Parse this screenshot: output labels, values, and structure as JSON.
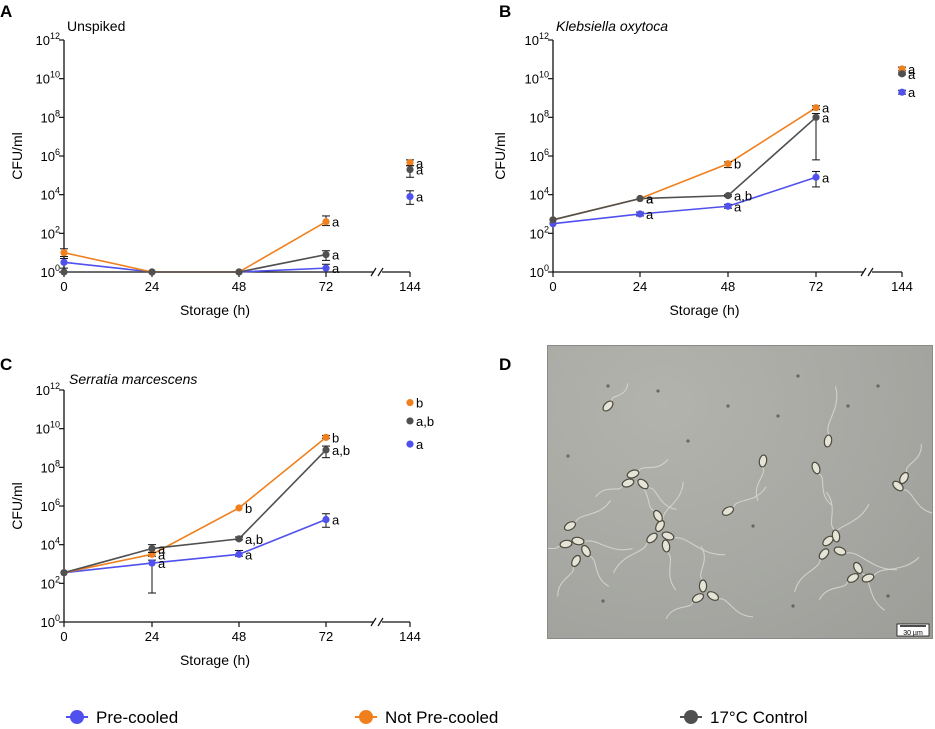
{
  "figure": {
    "legend": [
      {
        "label": "Pre-cooled",
        "color": "#5050ee"
      },
      {
        "label": "Not Pre-cooled",
        "color": "#f0801e"
      },
      {
        "label": "17°C Control",
        "color": "#505050"
      }
    ],
    "micrograph": {
      "label": "D",
      "scale_bar": "30 µm",
      "description_icon": "sperm-micrograph-image"
    }
  },
  "chart_data": [
    {
      "label": "A",
      "type": "line",
      "title": "Unspiked",
      "title_italic": false,
      "xlabel": "Storage (h)",
      "ylabel": "CFU/ml",
      "y_scale": "log10",
      "ylim": [
        0,
        12
      ],
      "yticks": [
        {
          "base": "10",
          "exp": "0"
        },
        {
          "base": "10",
          "exp": "2"
        },
        {
          "base": "10",
          "exp": "4"
        },
        {
          "base": "10",
          "exp": "6"
        },
        {
          "base": "10",
          "exp": "8"
        },
        {
          "base": "10",
          "exp": "10"
        },
        {
          "base": "10",
          "exp": "12"
        }
      ],
      "categories": [
        "0",
        "24",
        "48",
        "72",
        "144"
      ],
      "series": [
        {
          "name": "Pre-cooled",
          "color": "#5050ee",
          "points": [
            {
              "x": "0",
              "y": 0.5,
              "lo": 0.2,
              "hi": 0.7
            },
            {
              "x": "24",
              "y": 0
            },
            {
              "x": "48",
              "y": 0
            },
            {
              "x": "72",
              "y": 0.2,
              "lo": 0,
              "hi": 0.4,
              "label": "a"
            },
            {
              "x": "144",
              "y": 3.9,
              "lo": 3.5,
              "hi": 4.2,
              "label": "a",
              "separate": true
            }
          ]
        },
        {
          "name": "Not Pre-cooled",
          "color": "#f0801e",
          "points": [
            {
              "x": "0",
              "y": 1.0,
              "lo": 0.8,
              "hi": 1.2
            },
            {
              "x": "24",
              "y": 0
            },
            {
              "x": "48",
              "y": 0
            },
            {
              "x": "72",
              "y": 2.6,
              "lo": 2.4,
              "hi": 2.9,
              "label": "a"
            },
            {
              "x": "144",
              "y": 5.65,
              "lo": 5.5,
              "hi": 5.8,
              "label": "a",
              "separate": true
            }
          ]
        },
        {
          "name": "17°C Control",
          "color": "#505050",
          "points": [
            {
              "x": "0",
              "y": 0
            },
            {
              "x": "24",
              "y": 0
            },
            {
              "x": "48",
              "y": 0
            },
            {
              "x": "72",
              "y": 0.9,
              "lo": 0.6,
              "hi": 1.1,
              "label": "a"
            },
            {
              "x": "144",
              "y": 5.3,
              "lo": 4.9,
              "hi": 5.5,
              "label": "a",
              "separate": true
            }
          ]
        }
      ]
    },
    {
      "label": "B",
      "type": "line",
      "title": "Klebsiella oxytoca",
      "title_italic": true,
      "xlabel": "Storage (h)",
      "ylabel": "CFU/ml",
      "y_scale": "log10",
      "ylim": [
        0,
        12
      ],
      "yticks": [
        {
          "base": "10",
          "exp": "0"
        },
        {
          "base": "10",
          "exp": "2"
        },
        {
          "base": "10",
          "exp": "4"
        },
        {
          "base": "10",
          "exp": "6"
        },
        {
          "base": "10",
          "exp": "8"
        },
        {
          "base": "10",
          "exp": "10"
        },
        {
          "base": "10",
          "exp": "12"
        }
      ],
      "categories": [
        "0",
        "24",
        "48",
        "72",
        "144"
      ],
      "series": [
        {
          "name": "Pre-cooled",
          "color": "#5050ee",
          "points": [
            {
              "x": "0",
              "y": 2.5
            },
            {
              "x": "24",
              "y": 3.0,
              "lo": 2.9,
              "hi": 3.1,
              "label": "a"
            },
            {
              "x": "48",
              "y": 3.4,
              "lo": 3.3,
              "hi": 3.5,
              "label": "a"
            },
            {
              "x": "72",
              "y": 4.9,
              "lo": 4.4,
              "hi": 5.2,
              "label": "a"
            },
            {
              "x": "144",
              "y": 9.3,
              "lo": 9.2,
              "hi": 9.4,
              "label": "a",
              "separate": true
            }
          ]
        },
        {
          "name": "Not Pre-cooled",
          "color": "#f0801e",
          "points": [
            {
              "x": "0",
              "y": 2.7
            },
            {
              "x": "24",
              "y": 3.8,
              "label": "a"
            },
            {
              "x": "48",
              "y": 5.6,
              "lo": 5.4,
              "hi": 5.7,
              "label": "b"
            },
            {
              "x": "72",
              "y": 8.5,
              "lo": 8.4,
              "hi": 8.6,
              "label": "a"
            },
            {
              "x": "144",
              "y": 10.5,
              "lo": 10.4,
              "hi": 10.6,
              "label": "a",
              "separate": true
            }
          ]
        },
        {
          "name": "17°C Control",
          "color": "#505050",
          "points": [
            {
              "x": "0",
              "y": 2.7
            },
            {
              "x": "24",
              "y": 3.8,
              "label": "a"
            },
            {
              "x": "48",
              "y": 3.95,
              "lo": 3.9,
              "hi": 4.0,
              "label": "a,b"
            },
            {
              "x": "72",
              "y": 8.0,
              "lo": 5.8,
              "hi": 8.2,
              "label": "a"
            },
            {
              "x": "144",
              "y": 10.25,
              "lo": 10.2,
              "hi": 10.3,
              "label": "a",
              "separate": true
            }
          ]
        }
      ]
    },
    {
      "label": "C",
      "type": "line",
      "title": "Serratia marcescens",
      "title_italic": true,
      "xlabel": "Storage (h)",
      "ylabel": "CFU/ml",
      "y_scale": "log10",
      "ylim": [
        0,
        12
      ],
      "yticks": [
        {
          "base": "10",
          "exp": "0"
        },
        {
          "base": "10",
          "exp": "2"
        },
        {
          "base": "10",
          "exp": "4"
        },
        {
          "base": "10",
          "exp": "6"
        },
        {
          "base": "10",
          "exp": "8"
        },
        {
          "base": "10",
          "exp": "10"
        },
        {
          "base": "10",
          "exp": "12"
        }
      ],
      "categories": [
        "0",
        "24",
        "48",
        "72",
        "144"
      ],
      "series": [
        {
          "name": "Pre-cooled",
          "color": "#5050ee",
          "points": [
            {
              "x": "0",
              "y": 2.55
            },
            {
              "x": "24",
              "y": 3.05,
              "lo": 1.5,
              "hi": 3.2,
              "label": "a"
            },
            {
              "x": "48",
              "y": 3.5,
              "lo": 3.4,
              "hi": 3.7,
              "label": "a"
            },
            {
              "x": "72",
              "y": 5.3,
              "lo": 4.9,
              "hi": 5.6,
              "label": "a"
            },
            {
              "x": "144",
              "y": 9.2,
              "label": "a",
              "separate": true
            }
          ]
        },
        {
          "name": "Not Pre-cooled",
          "color": "#f0801e",
          "points": [
            {
              "x": "0",
              "y": 2.55
            },
            {
              "x": "24",
              "y": 3.5,
              "lo": 3.4,
              "hi": 3.6,
              "label": "a"
            },
            {
              "x": "48",
              "y": 5.9,
              "label": "b"
            },
            {
              "x": "72",
              "y": 9.55,
              "lo": 9.5,
              "hi": 9.65,
              "label": "b"
            },
            {
              "x": "144",
              "y": 11.35,
              "label": "b",
              "separate": true
            }
          ]
        },
        {
          "name": "17°C Control",
          "color": "#505050",
          "points": [
            {
              "x": "0",
              "y": 2.55
            },
            {
              "x": "24",
              "y": 3.8,
              "lo": 3.6,
              "hi": 4.0,
              "label": "a"
            },
            {
              "x": "48",
              "y": 4.3,
              "lo": 4.25,
              "hi": 4.4,
              "label": "a,b"
            },
            {
              "x": "72",
              "y": 8.9,
              "lo": 8.5,
              "hi": 9.1,
              "label": "a,b"
            },
            {
              "x": "144",
              "y": 10.4,
              "label": "a,b",
              "separate": true
            }
          ]
        }
      ]
    }
  ]
}
